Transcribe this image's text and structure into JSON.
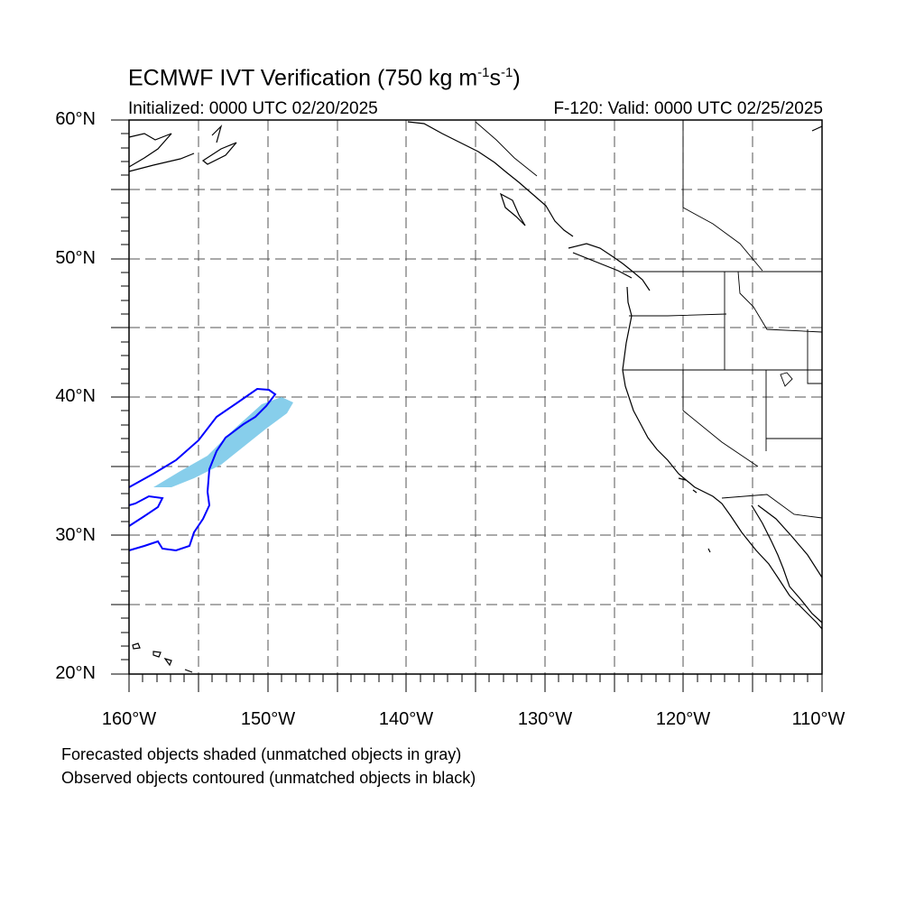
{
  "title": {
    "main": "ECMWF IVT Verification (750 kg m",
    "exp1": "-1",
    "mid": "s",
    "exp2": "-1",
    "end": ")"
  },
  "subtitle_left": "Initialized: 0000 UTC 02/20/2025",
  "subtitle_right": "F-120: Valid: 0000 UTC 02/25/2025",
  "lat_labels": [
    "60°N",
    "50°N",
    "40°N",
    "30°N",
    "20°N"
  ],
  "lon_labels": [
    "160°W",
    "150°W",
    "140°W",
    "130°W",
    "120°W",
    "110°W"
  ],
  "notes": [
    "Forecasted objects shaded (unmatched objects in gray)",
    "Observed objects contoured (unmatched objects in black)"
  ],
  "extent": {
    "lon": [
      -160,
      -110
    ],
    "lat": [
      20,
      60
    ]
  },
  "grid_step_deg": 5,
  "colors": {
    "forecast_fill": "#87ceeb",
    "observed_contour": "#0000ff",
    "coast": "#000000",
    "grid": "#555555"
  }
}
